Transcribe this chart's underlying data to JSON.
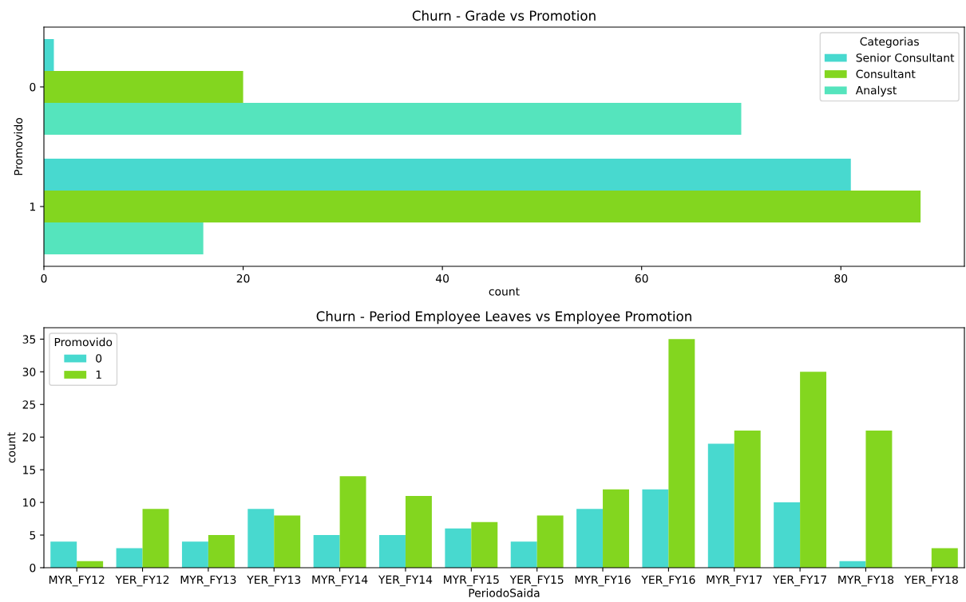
{
  "chart_data": [
    {
      "type": "bar",
      "orientation": "horizontal",
      "title": "Churn - Grade vs Promotion",
      "xlabel": "count",
      "ylabel": "Promovido",
      "legend_title": "Categorias",
      "legend": "top right",
      "categories": [
        "0",
        "1"
      ],
      "xlim": [
        0,
        92.4
      ],
      "xticks": [
        0,
        20,
        40,
        60,
        80
      ],
      "series": [
        {
          "name": "Senior Consultant",
          "color": "#48d9cf",
          "values": [
            1,
            81
          ]
        },
        {
          "name": "Consultant",
          "color": "#83d61f",
          "values": [
            20,
            88
          ]
        },
        {
          "name": "Analyst",
          "color": "#55e4bd",
          "values": [
            70,
            16
          ]
        }
      ]
    },
    {
      "type": "bar",
      "title": "Churn - Period Employee Leaves vs Employee Promotion",
      "xlabel": "PeriodoSaida",
      "ylabel": "count",
      "legend_title": "Promovido",
      "legend": "top left",
      "categories": [
        "MYR_FY12",
        "YER_FY12",
        "MYR_FY13",
        "YER_FY13",
        "MYR_FY14",
        "YER_FY14",
        "MYR_FY15",
        "YER_FY15",
        "MYR_FY16",
        "YER_FY16",
        "MYR_FY17",
        "YER_FY17",
        "MYR_FY18",
        "YER_FY18"
      ],
      "ylim": [
        0,
        36.75
      ],
      "yticks": [
        0,
        5,
        10,
        15,
        20,
        25,
        30,
        35
      ],
      "series": [
        {
          "name": "0",
          "color": "#48d9cf",
          "values": [
            4,
            3,
            4,
            9,
            5,
            5,
            6,
            4,
            9,
            12,
            19,
            10,
            1,
            null
          ]
        },
        {
          "name": "1",
          "color": "#83d61f",
          "values": [
            1,
            9,
            5,
            8,
            14,
            11,
            7,
            8,
            12,
            35,
            21,
            30,
            21,
            3
          ]
        }
      ]
    }
  ]
}
